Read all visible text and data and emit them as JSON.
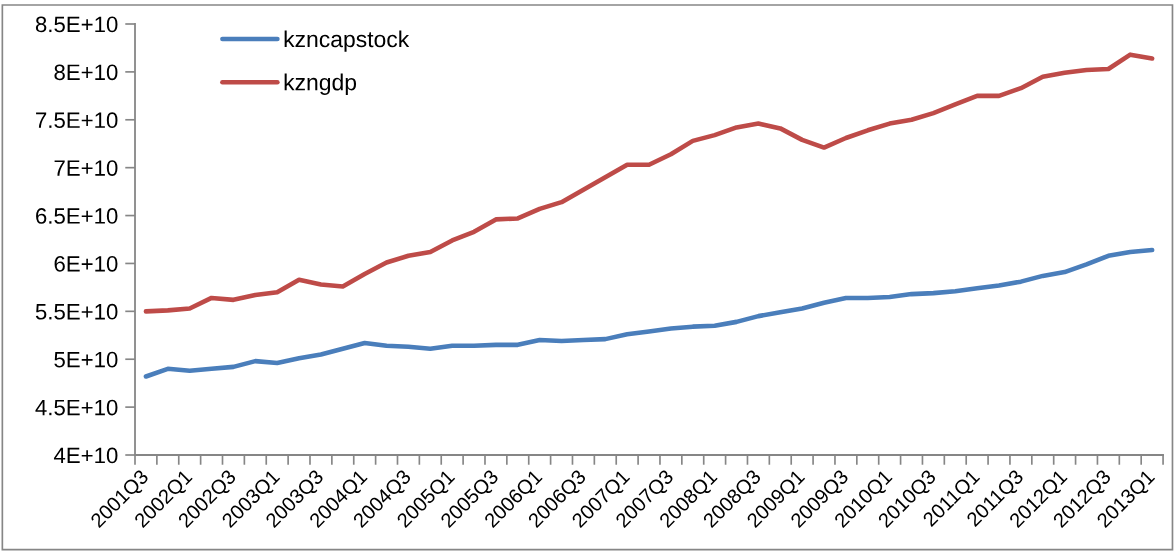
{
  "chart_data": {
    "type": "line",
    "categories": [
      "2001Q3",
      null,
      "2002Q1",
      null,
      "2002Q3",
      null,
      "2003Q1",
      null,
      "2003Q3",
      null,
      "2004Q1",
      null,
      "2004Q3",
      null,
      "2005Q1",
      null,
      "2005Q3",
      null,
      "2006Q1",
      null,
      "2006Q3",
      null,
      "2007Q1",
      null,
      "2007Q3",
      null,
      "2008Q1",
      null,
      "2008Q3",
      null,
      "2009Q1",
      null,
      "2009Q3",
      null,
      "2010Q1",
      null,
      "2010Q3",
      null,
      "2011Q1",
      null,
      "2011Q3",
      null,
      "2012Q1",
      null,
      "2012Q3",
      null,
      "2013Q1"
    ],
    "series": [
      {
        "name": "kzncapstock",
        "color": "#4a7ebb",
        "values": [
          48200000000.0,
          49000000000.0,
          48800000000.0,
          49000000000.0,
          49200000000.0,
          49800000000.0,
          49600000000.0,
          50100000000.0,
          50500000000.0,
          51100000000.0,
          51700000000.0,
          51400000000.0,
          51300000000.0,
          51100000000.0,
          51400000000.0,
          51400000000.0,
          51500000000.0,
          51500000000.0,
          52000000000.0,
          51900000000.0,
          52000000000.0,
          52100000000.0,
          52600000000.0,
          52900000000.0,
          53200000000.0,
          53400000000.0,
          53500000000.0,
          53900000000.0,
          54500000000.0,
          54900000000.0,
          55300000000.0,
          55900000000.0,
          56400000000.0,
          56400000000.0,
          56500000000.0,
          56800000000.0,
          56900000000.0,
          57100000000.0,
          57400000000.0,
          57700000000.0,
          58100000000.0,
          58700000000.0,
          59100000000.0,
          59900000000.0,
          60800000000.0,
          61200000000.0,
          61400000000.0
        ]
      },
      {
        "name": "kzngdp",
        "color": "#be4b48",
        "values": [
          55000000000.0,
          55100000000.0,
          55300000000.0,
          56400000000.0,
          56200000000.0,
          56700000000.0,
          57000000000.0,
          58300000000.0,
          57800000000.0,
          57600000000.0,
          58900000000.0,
          60100000000.0,
          60800000000.0,
          61200000000.0,
          62400000000.0,
          63300000000.0,
          64600000000.0,
          64700000000.0,
          65700000000.0,
          66400000000.0,
          67700000000.0,
          69000000000.0,
          70300000000.0,
          70300000000.0,
          71400000000.0,
          72800000000.0,
          73400000000.0,
          74200000000.0,
          74600000000.0,
          74100000000.0,
          72900000000.0,
          72100000000.0,
          73100000000.0,
          73900000000.0,
          74600000000.0,
          75000000000.0,
          75700000000.0,
          76600000000.0,
          77500000000.0,
          77500000000.0,
          78300000000.0,
          79500000000.0,
          79900000000.0,
          80200000000.0,
          80300000000.0,
          81800000000.0,
          81400000000.0
        ]
      }
    ],
    "ylim": [
      40000000000.0,
      85000000000.0
    ],
    "yticks": [
      {
        "value": 40000000000.0,
        "label": "4E+10"
      },
      {
        "value": 45000000000.0,
        "label": "4.5E+10"
      },
      {
        "value": 50000000000.0,
        "label": "5E+10"
      },
      {
        "value": 55000000000.0,
        "label": "5.5E+10"
      },
      {
        "value": 60000000000.0,
        "label": "6E+10"
      },
      {
        "value": 65000000000.0,
        "label": "6.5E+10"
      },
      {
        "value": 70000000000.0,
        "label": "7E+10"
      },
      {
        "value": 75000000000.0,
        "label": "7.5E+10"
      },
      {
        "value": 80000000000.0,
        "label": "8E+10"
      },
      {
        "value": 85000000000.0,
        "label": "8.5E+10"
      }
    ],
    "grid": false,
    "legend": "top left",
    "marker": "none",
    "line_style": "solid"
  }
}
